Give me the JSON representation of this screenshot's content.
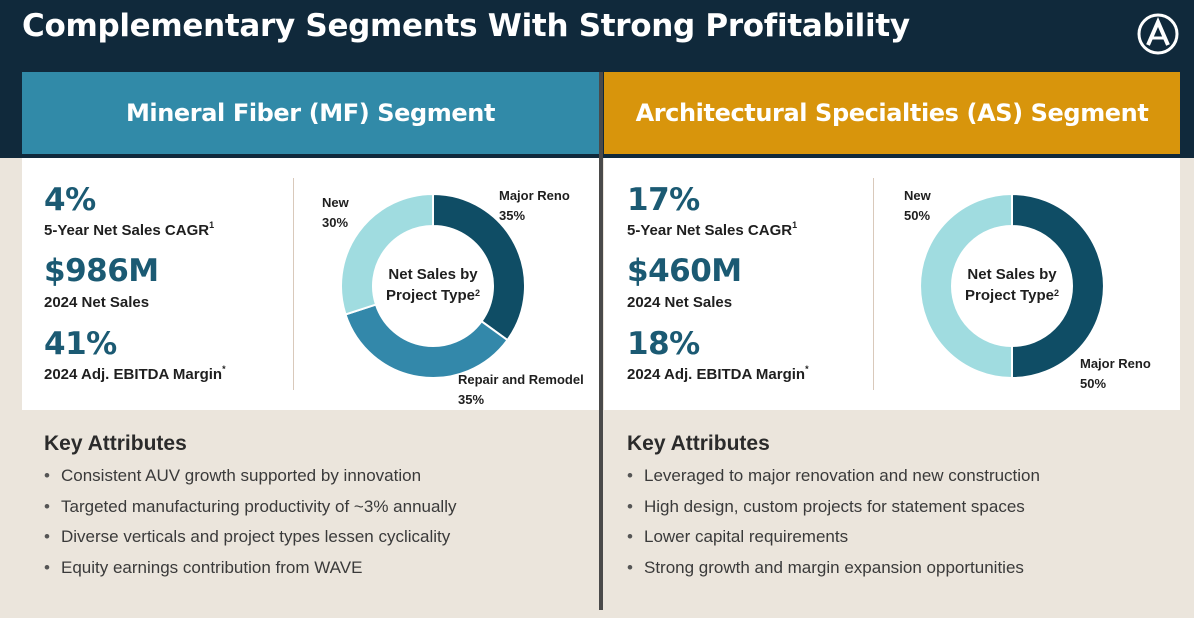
{
  "page": {
    "title": "Complementary Segments With Strong Profitability",
    "logo_icon": "circle-a-logo-icon"
  },
  "colors": {
    "navy": "#10293b",
    "mf_blue": "#318aa8",
    "as_gold": "#d8950c",
    "value_teal": "#1b5a73",
    "donut_dark": "#0f4d65",
    "donut_mid": "#3388aa",
    "donut_light": "#a0dce0",
    "background": "#ebe5dc"
  },
  "segments": {
    "mf": {
      "header": "Mineral Fiber (MF) Segment",
      "metrics": [
        {
          "value": "4%",
          "label": "5-Year Net Sales CAGR",
          "sup": "1"
        },
        {
          "value": "$986M",
          "label": "2024 Net Sales",
          "sup": ""
        },
        {
          "value": "41%",
          "label": "2024 Adj. EBITDA Margin",
          "sup": "*"
        }
      ],
      "donut_title_line1": "Net Sales by",
      "donut_title_line2": "Project Type",
      "donut_title_sup": "2",
      "attributes_title": "Key Attributes",
      "attributes": [
        "Consistent AUV growth supported by innovation",
        "Targeted manufacturing productivity of ~3% annually",
        "Diverse verticals and project types lessen cyclicality",
        "Equity earnings contribution from WAVE"
      ]
    },
    "as": {
      "header": "Architectural Specialties (AS) Segment",
      "metrics": [
        {
          "value": "17%",
          "label": "5-Year Net Sales CAGR",
          "sup": "1"
        },
        {
          "value": "$460M",
          "label": "2024 Net Sales",
          "sup": ""
        },
        {
          "value": "18%",
          "label": "2024 Adj. EBITDA Margin",
          "sup": "*"
        }
      ],
      "donut_title_line1": "Net Sales by",
      "donut_title_line2": "Project Type",
      "donut_title_sup": "2",
      "attributes_title": "Key Attributes",
      "attributes": [
        "Leveraged to major renovation and new construction",
        "High design, custom projects for statement spaces",
        "Lower capital requirements",
        "Strong growth and margin expansion opportunities"
      ]
    }
  },
  "chart_data": [
    {
      "type": "pie",
      "title": "Net Sales by Project Type",
      "categories": [
        "Major Reno",
        "Repair and Remodel",
        "New"
      ],
      "values": [
        35,
        35,
        30
      ],
      "value_labels": [
        "35%",
        "35%",
        "30%"
      ],
      "colors": [
        "#0f4d65",
        "#3388aa",
        "#a0dce0"
      ],
      "donut": true
    },
    {
      "type": "pie",
      "title": "Net Sales by Project Type",
      "categories": [
        "Major Reno",
        "New"
      ],
      "values": [
        50,
        50
      ],
      "value_labels": [
        "50%",
        "50%"
      ],
      "colors": [
        "#0f4d65",
        "#a0dce0"
      ],
      "donut": true
    }
  ]
}
